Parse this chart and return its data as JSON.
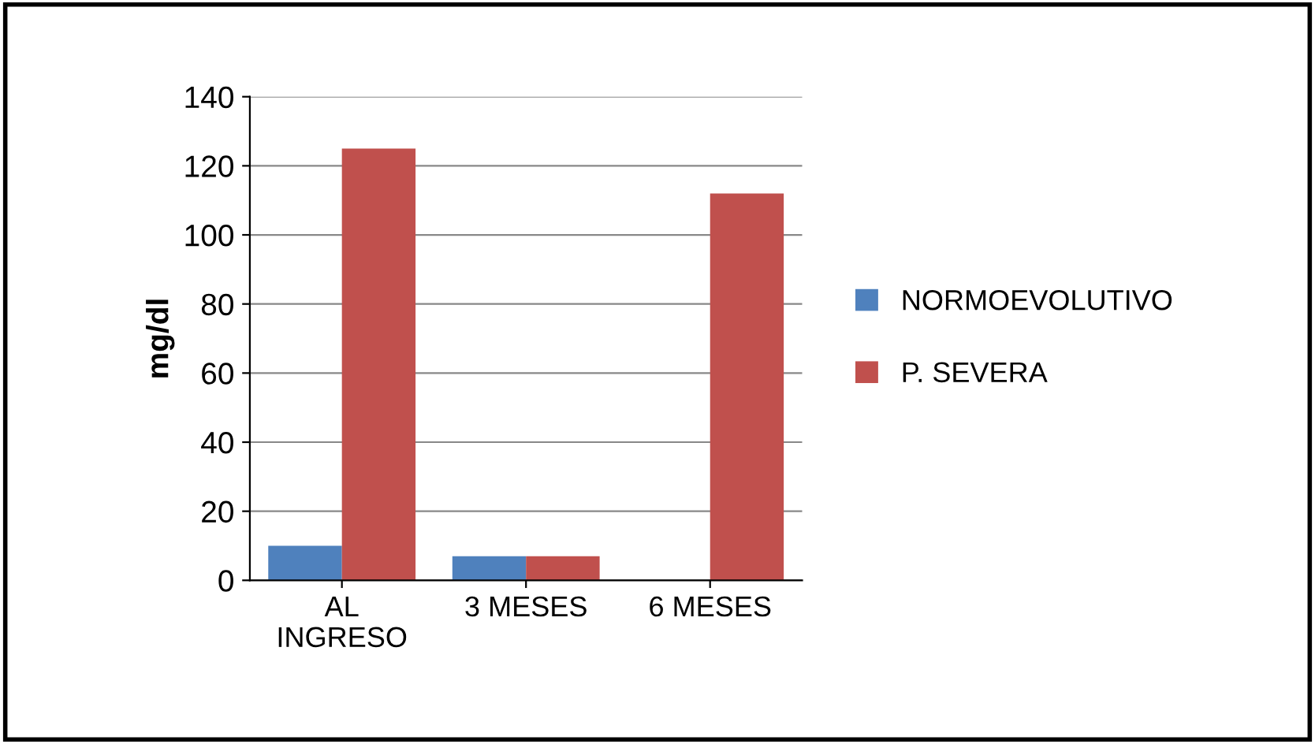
{
  "chart_data": {
    "type": "bar",
    "ylabel": "mg/dl",
    "categories": [
      "AL\nINGRESO",
      "3 MESES",
      "6 MESES"
    ],
    "series": [
      {
        "name": "NORMOEVOLUTIVO",
        "color": "#4f81bd",
        "values": [
          10,
          7,
          0
        ]
      },
      {
        "name": "P. SEVERA",
        "color": "#c0504d",
        "values": [
          125,
          7,
          112
        ]
      }
    ],
    "ylim": [
      0,
      140
    ],
    "yticks": [
      0,
      20,
      40,
      60,
      80,
      100,
      120,
      140
    ],
    "grid": "y",
    "legend": "right"
  }
}
